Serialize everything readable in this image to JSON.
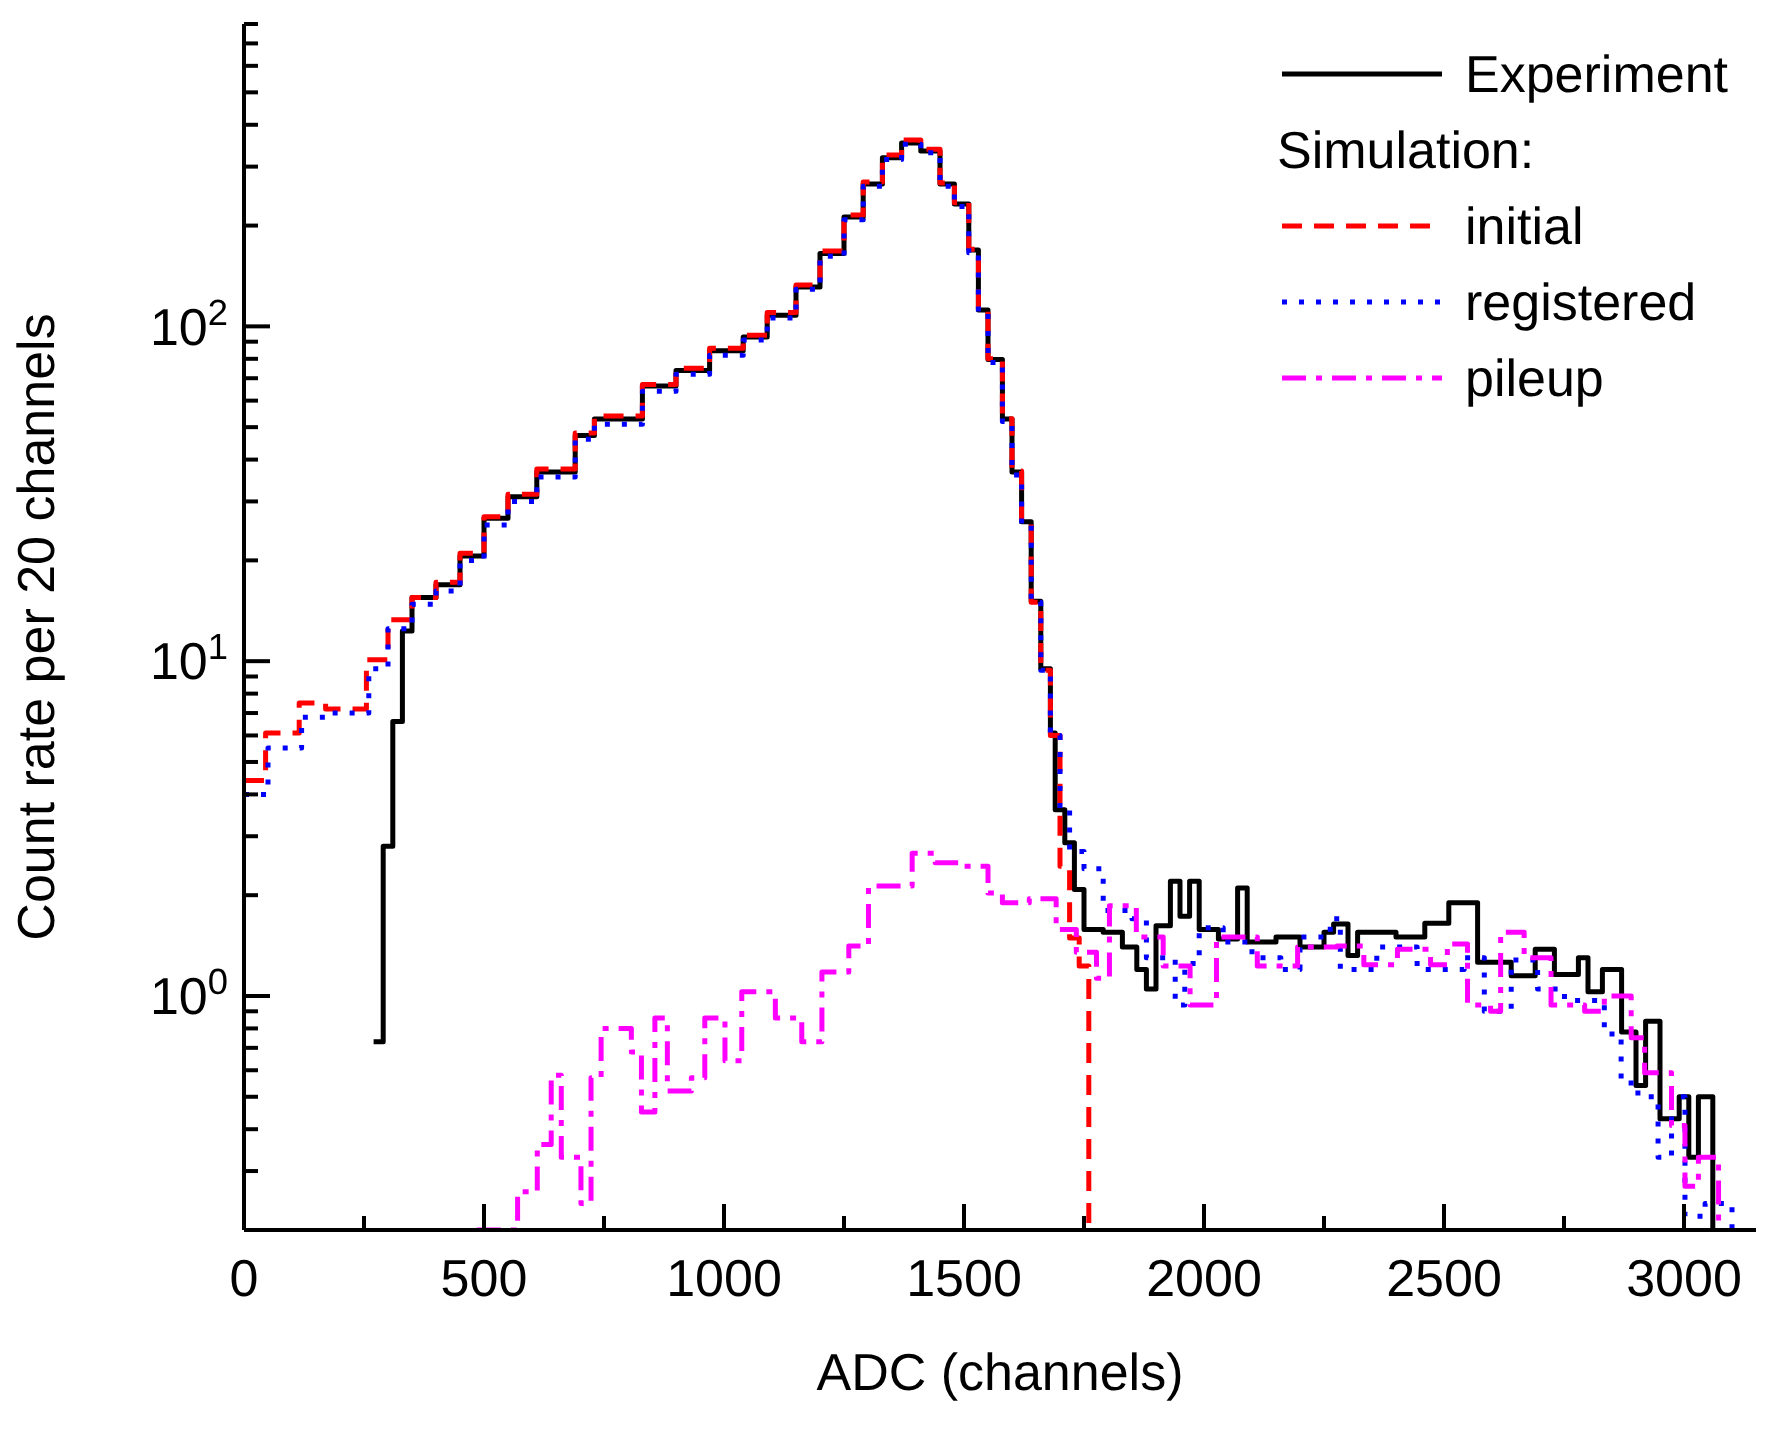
{
  "chart_data": {
    "type": "step",
    "xlabel": "ADC (channels)",
    "ylabel": "Count rate per 20 channels",
    "log": "y",
    "legend": "top right",
    "legend_title": "Simulation:",
    "xlim": [
      0,
      3150
    ],
    "ylim": [
      0.2,
      800
    ],
    "xticks": [
      0,
      {
        "value": 250,
        "label": null
      },
      500,
      {
        "value": 750,
        "label": null
      },
      1000,
      {
        "value": 1250,
        "label": null
      },
      1500,
      {
        "value": 1750,
        "label": null
      },
      2000,
      {
        "value": 2250,
        "label": null
      },
      2500,
      {
        "value": 2750,
        "label": null
      },
      3000
    ],
    "yticks": [
      {
        "value": 0.2,
        "label": null
      },
      {
        "value": 0.3,
        "label": null
      },
      {
        "value": 0.4,
        "label": null
      },
      {
        "value": 0.5,
        "label": null
      },
      {
        "value": 0.6,
        "label": null
      },
      {
        "value": 0.7,
        "label": null
      },
      {
        "value": 0.8,
        "label": null
      },
      {
        "value": 0.9,
        "label": null
      },
      {
        "value": 1,
        "label": "10$^{0}$"
      },
      {
        "value": 2,
        "label": null
      },
      {
        "value": 3,
        "label": null
      },
      {
        "value": 4,
        "label": null
      },
      {
        "value": 5,
        "label": null
      },
      {
        "value": 6,
        "label": null
      },
      {
        "value": 7,
        "label": null
      },
      {
        "value": 8,
        "label": null
      },
      {
        "value": 9,
        "label": null
      },
      {
        "value": 10,
        "label": "10$^{1}$"
      },
      {
        "value": 20,
        "label": null
      },
      {
        "value": 30,
        "label": null
      },
      {
        "value": 40,
        "label": null
      },
      {
        "value": 50,
        "label": null
      },
      {
        "value": 60,
        "label": null
      },
      {
        "value": 70,
        "label": null
      },
      {
        "value": 80,
        "label": null
      },
      {
        "value": 90,
        "label": null
      },
      {
        "value": 100,
        "label": "10$^{2}$"
      },
      {
        "value": 200,
        "label": null
      },
      {
        "value": 300,
        "label": null
      },
      {
        "value": 400,
        "label": null
      },
      {
        "value": 500,
        "label": null
      },
      {
        "value": 600,
        "label": null
      },
      {
        "value": 700,
        "label": null
      },
      {
        "value": 800,
        "label": null
      }
    ],
    "series": [
      {
        "name": "Experiment",
        "color": "#000000",
        "line_style": "solid",
        "x": [
          270,
          290,
          310,
          330,
          350,
          400,
          450,
          500,
          550,
          610,
          690,
          730,
          830,
          900,
          970,
          1040,
          1090,
          1150,
          1200,
          1250,
          1290,
          1330,
          1370,
          1410,
          1450,
          1480,
          1510,
          1530,
          1550,
          1580,
          1600,
          1620,
          1640,
          1660,
          1680,
          1690,
          1710,
          1730,
          1750,
          1790,
          1830,
          1860,
          1880,
          1900,
          1930,
          1950,
          1970,
          1990,
          2030,
          2070,
          2090,
          2150,
          2200,
          2250,
          2270,
          2300,
          2320,
          2400,
          2460,
          2510,
          2570,
          2640,
          2690,
          2730,
          2780,
          2800,
          2830,
          2870,
          2900,
          2920,
          2950,
          2990,
          3010,
          3030,
          3060
        ],
        "values": [
          0.73,
          2.8,
          6.6,
          12.3,
          15.5,
          16.9,
          20.6,
          26.7,
          31,
          36.7,
          47.2,
          52.9,
          66.4,
          73.8,
          84.6,
          93,
          108,
          131,
          165,
          212,
          266,
          319,
          353,
          334,
          266,
          232,
          169,
          112,
          79.6,
          52.9,
          36.7,
          26.1,
          15.1,
          9.5,
          6.1,
          3.6,
          2.87,
          2.08,
          1.58,
          1.55,
          1.4,
          1.2,
          1.05,
          1.62,
          2.2,
          1.73,
          2.2,
          1.58,
          1.48,
          2.1,
          1.45,
          1.5,
          1.4,
          1.55,
          1.64,
          1.32,
          1.55,
          1.5,
          1.65,
          1.9,
          1.26,
          1.15,
          1.38,
          1.16,
          1.3,
          1.03,
          1.2,
          0.78,
          0.54,
          0.84,
          0.43,
          0.5,
          0.33,
          0.5,
          0.2
        ]
      },
      {
        "name": "initial",
        "color": "#ff0000",
        "line_style": "dashed",
        "x": [
          0,
          45,
          115,
          170,
          255,
          300,
          350,
          400,
          450,
          500,
          550,
          610,
          690,
          730,
          830,
          900,
          970,
          1040,
          1090,
          1150,
          1200,
          1250,
          1290,
          1330,
          1370,
          1410,
          1450,
          1480,
          1510,
          1530,
          1550,
          1580,
          1600,
          1620,
          1640,
          1660,
          1680,
          1700,
          1720,
          1740,
          1760
        ],
        "values": [
          4.4,
          6.1,
          7.5,
          7.2,
          10.1,
          13.3,
          15.5,
          17.2,
          21,
          27,
          31.5,
          37.5,
          48,
          54,
          67,
          75,
          86,
          94,
          110,
          133,
          168,
          215,
          270,
          325,
          360,
          338,
          268,
          234,
          170,
          113,
          80,
          53,
          37,
          26,
          15,
          9.4,
          6,
          2.44,
          1.49,
          1.23,
          0.2
        ]
      },
      {
        "name": "registered",
        "color": "#0000ff",
        "line_style": "dotted",
        "x": [
          0,
          50,
          120,
          180,
          260,
          300,
          350,
          400,
          450,
          500,
          550,
          610,
          690,
          730,
          830,
          900,
          970,
          1040,
          1090,
          1150,
          1200,
          1250,
          1290,
          1330,
          1370,
          1410,
          1450,
          1480,
          1510,
          1530,
          1550,
          1580,
          1600,
          1620,
          1640,
          1660,
          1680,
          1700,
          1720,
          1750,
          1790,
          1850,
          1880,
          1940,
          1960,
          1990,
          2040,
          2100,
          2160,
          2200,
          2263,
          2284,
          2360,
          2444,
          2542,
          2584,
          2640,
          2695,
          2751,
          2834,
          2869,
          2904,
          2946,
          2974,
          3002,
          3044,
          3100
        ],
        "values": [
          4.0,
          5.5,
          6.8,
          7.0,
          9.5,
          12.5,
          14.8,
          16.2,
          20,
          25.5,
          30,
          35.5,
          46,
          51,
          64,
          72,
          82,
          91,
          106,
          129,
          162,
          208,
          262,
          315,
          350,
          330,
          262,
          228,
          166,
          110,
          78,
          52,
          36,
          25.5,
          15,
          9.4,
          6,
          3.6,
          2.7,
          2.4,
          1.8,
          1.7,
          1.3,
          0.94,
          1.25,
          1.6,
          1.45,
          1.3,
          1.2,
          1.5,
          1.7,
          1.2,
          1.4,
          1.2,
          1.3,
          0.9,
          1.28,
          1.05,
          0.97,
          0.77,
          0.55,
          0.5,
          0.33,
          0.5,
          0.22,
          0.24,
          0.2
        ]
      },
      {
        "name": "pileup",
        "color": "#ff00ff",
        "line_style": "dashdot",
        "x": [
          485,
          570,
          611,
          640,
          661,
          702,
          723,
          744,
          807,
          828,
          856,
          882,
          932,
          960,
          1002,
          1037,
          1107,
          1162,
          1204,
          1260,
          1301,
          1392,
          1440,
          1497,
          1550,
          1580,
          1636,
          1692,
          1734,
          1776,
          1803,
          1859,
          1915,
          1971,
          2026,
          2111,
          2195,
          2277,
          2333,
          2403,
          2472,
          2507,
          2549,
          2597,
          2618,
          2667,
          2723,
          2793,
          2834,
          2890,
          2918,
          2974,
          3002,
          3030,
          3072
        ],
        "values": [
          0.2,
          0.26,
          0.36,
          0.58,
          0.33,
          0.24,
          0.57,
          0.8,
          0.68,
          0.45,
          0.86,
          0.52,
          0.57,
          0.86,
          0.64,
          1.03,
          0.86,
          0.73,
          1.18,
          1.41,
          2.13,
          2.67,
          2.5,
          2.44,
          2.03,
          1.9,
          1.95,
          1.58,
          1.35,
          1.13,
          1.86,
          1.5,
          1.23,
          0.94,
          1.5,
          1.23,
          1.4,
          1.41,
          1.24,
          1.38,
          1.24,
          1.43,
          0.94,
          0.9,
          1.55,
          1.3,
          0.94,
          0.9,
          1.0,
          0.75,
          0.59,
          0.41,
          0.27,
          0.33,
          0.2
        ]
      }
    ]
  }
}
